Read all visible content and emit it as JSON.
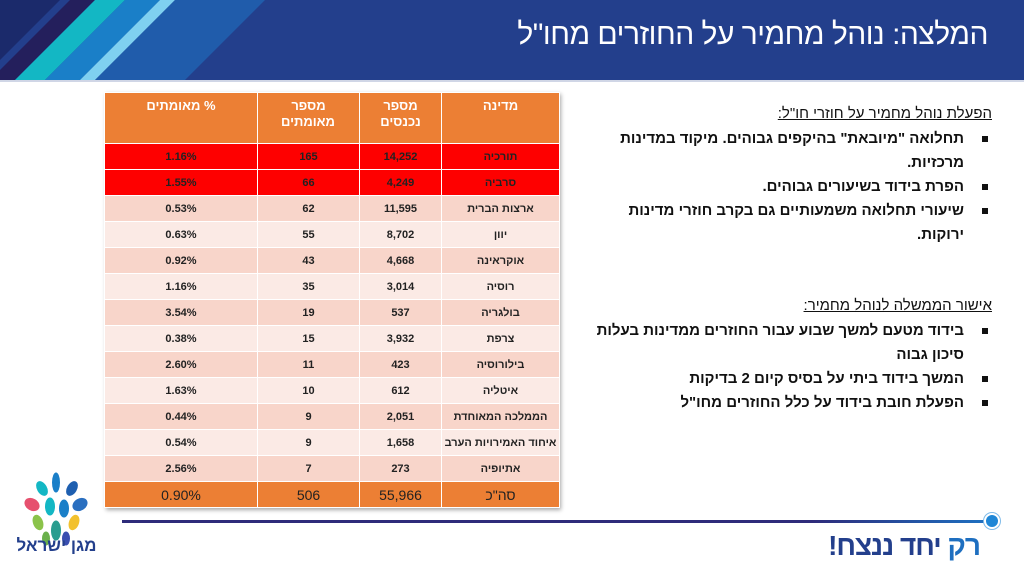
{
  "header": {
    "title": "המלצה: נוהל מחמיר על החוזרים מחו\"ל"
  },
  "colors": {
    "header_bg": "#233f8c",
    "table_header": "#ec7f34",
    "highlight": "#fe0000",
    "row_dark": "#f8d5ca",
    "row_light": "#fbeae5"
  },
  "table": {
    "columns": [
      "מדינה",
      "מספר נכנסים",
      "מספר מאומתים",
      "% מאומתים"
    ],
    "rows": [
      {
        "country": "תורכיה",
        "entrants": "14,252",
        "confirmed": "165",
        "pct": "1.16%",
        "style": "red"
      },
      {
        "country": "סרביה",
        "entrants": "4,249",
        "confirmed": "66",
        "pct": "1.55%",
        "style": "red"
      },
      {
        "country": "ארצות הברית",
        "entrants": "11,595",
        "confirmed": "62",
        "pct": "0.53%",
        "style": "dark"
      },
      {
        "country": "יוון",
        "entrants": "8,702",
        "confirmed": "55",
        "pct": "0.63%",
        "style": "light"
      },
      {
        "country": "אוקראינה",
        "entrants": "4,668",
        "confirmed": "43",
        "pct": "0.92%",
        "style": "dark"
      },
      {
        "country": "רוסיה",
        "entrants": "3,014",
        "confirmed": "35",
        "pct": "1.16%",
        "style": "light"
      },
      {
        "country": "בולגריה",
        "entrants": "537",
        "confirmed": "19",
        "pct": "3.54%",
        "style": "dark"
      },
      {
        "country": "צרפת",
        "entrants": "3,932",
        "confirmed": "15",
        "pct": "0.38%",
        "style": "light"
      },
      {
        "country": "בילורוסיה",
        "entrants": "423",
        "confirmed": "11",
        "pct": "2.60%",
        "style": "dark"
      },
      {
        "country": "איטליה",
        "entrants": "612",
        "confirmed": "10",
        "pct": "1.63%",
        "style": "light"
      },
      {
        "country": "הממלכה המאוחדת",
        "entrants": "2,051",
        "confirmed": "9",
        "pct": "0.44%",
        "style": "dark"
      },
      {
        "country": "איחוד האמירויות הערב",
        "entrants": "1,658",
        "confirmed": "9",
        "pct": "0.54%",
        "style": "light"
      },
      {
        "country": "אתיופיה",
        "entrants": "273",
        "confirmed": "7",
        "pct": "2.56%",
        "style": "dark"
      }
    ],
    "total": {
      "country": "סה\"כ",
      "entrants": "55,966",
      "confirmed": "506",
      "pct": "0.90%"
    }
  },
  "section1": {
    "heading": "הפעלת נוהל מחמיר על חוזרי חו\"ל:",
    "bullets": [
      "תחלואה \"מיובאת\" בהיקפים גבוהים. מיקוד במדינות מרכזיות.",
      "הפרת בידוד בשיעורים גבוהים.",
      "שיעורי תחלואה משמעותיים גם בקרב חוזרי מדינות ירוקות."
    ]
  },
  "section2": {
    "heading": "אישור הממשלה לנוהל מחמיר:",
    "bullets": [
      "בידוד מטעם למשך שבוע עבור החוזרים ממדינות בעלות סיכון גבוה",
      "המשך בידוד ביתי על בסיס קיום 2 בדיקות",
      "הפעלת חובת בידוד על כלל החוזרים מחו\"ל"
    ]
  },
  "footer": {
    "slogan_a": "רק",
    "slogan_b": "יחד ננצח!",
    "logo_text": "מגן ישראל"
  }
}
